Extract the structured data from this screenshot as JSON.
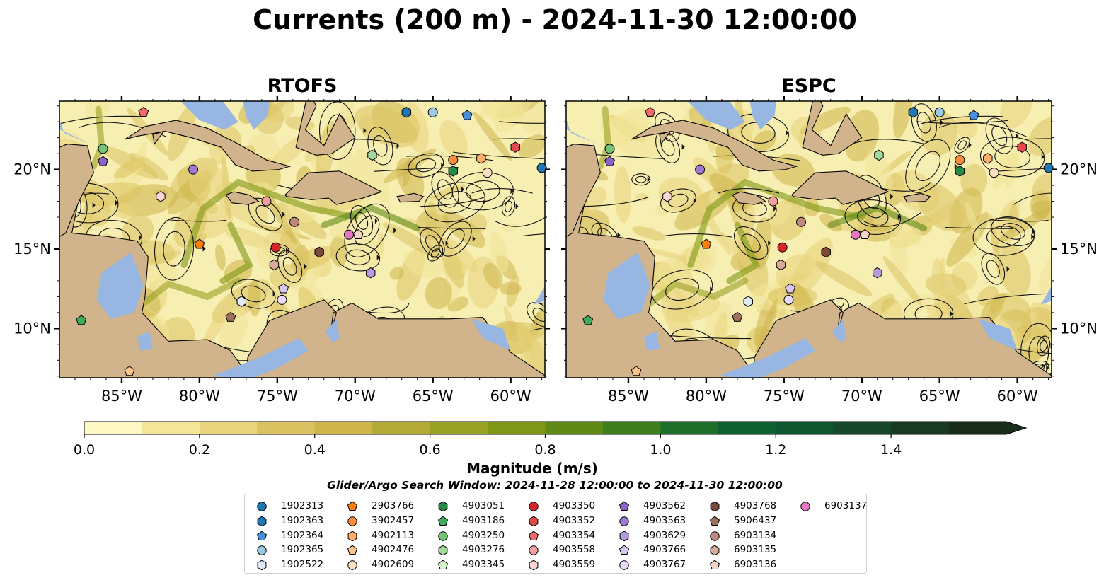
{
  "title": "Currents (200 m) - 2024-11-30 12:00:00",
  "panels": [
    {
      "title": "RTOFS"
    },
    {
      "title": "ESPC"
    }
  ],
  "axes": {
    "lon_ticks": [
      "85°W",
      "80°W",
      "75°W",
      "70°W",
      "65°W",
      "60°W"
    ],
    "lat_ticks": [
      "20°N",
      "15°N",
      "10°N"
    ]
  },
  "colorbar": {
    "label": "Magnitude (m/s)",
    "tick_labels": [
      "0.0",
      "0.2",
      "0.4",
      "0.6",
      "0.8",
      "1.0",
      "1.2",
      "1.4"
    ],
    "colors": [
      "#fef8c4",
      "#f3e699",
      "#e8d47c",
      "#dbc261",
      "#cdb54a",
      "#b2aa35",
      "#9aa224",
      "#7f9716",
      "#5f8a16",
      "#3f7e1e",
      "#1f6e2a",
      "#0e6232",
      "#0f5530",
      "#16472a",
      "#183a24",
      "#1a2d1c"
    ]
  },
  "search_window": "Glider/Argo Search Window: 2024-11-28 12:00:00 to 2024-11-30 12:00:00",
  "legend": [
    {
      "id": "1902313",
      "color": "#1f77b4",
      "shape": "circle"
    },
    {
      "id": "1902363",
      "color": "#1f77b4",
      "shape": "hexagon"
    },
    {
      "id": "1902364",
      "color": "#4a90d9",
      "shape": "pentagon"
    },
    {
      "id": "1902365",
      "color": "#9ecae1",
      "shape": "circle"
    },
    {
      "id": "1902522",
      "color": "#deebf7",
      "shape": "hexagon"
    },
    {
      "id": "2903766",
      "color": "#ff7f0e",
      "shape": "pentagon"
    },
    {
      "id": "3902457",
      "color": "#fd8d3c",
      "shape": "circle"
    },
    {
      "id": "4902113",
      "color": "#fdae6b",
      "shape": "hexagon"
    },
    {
      "id": "4902476",
      "color": "#fdc48c",
      "shape": "pentagon"
    },
    {
      "id": "4902609",
      "color": "#fee0c0",
      "shape": "circle"
    },
    {
      "id": "4903051",
      "color": "#238b45",
      "shape": "hexagon"
    },
    {
      "id": "4903186",
      "color": "#41ab5d",
      "shape": "pentagon"
    },
    {
      "id": "4903250",
      "color": "#74c476",
      "shape": "circle"
    },
    {
      "id": "4903276",
      "color": "#a1d99b",
      "shape": "hexagon"
    },
    {
      "id": "4903345",
      "color": "#d4f5cc",
      "shape": "pentagon"
    },
    {
      "id": "4903350",
      "color": "#d62728",
      "shape": "circle"
    },
    {
      "id": "4903352",
      "color": "#e34a4a",
      "shape": "hexagon"
    },
    {
      "id": "4903354",
      "color": "#ef6a6a",
      "shape": "pentagon"
    },
    {
      "id": "4903558",
      "color": "#f4a0a0",
      "shape": "circle"
    },
    {
      "id": "4903559",
      "color": "#fbd4d4",
      "shape": "hexagon"
    },
    {
      "id": "4903562",
      "color": "#8c63c6",
      "shape": "pentagon"
    },
    {
      "id": "4903563",
      "color": "#9f7ad1",
      "shape": "circle"
    },
    {
      "id": "4903629",
      "color": "#b79ae0",
      "shape": "hexagon"
    },
    {
      "id": "4903766",
      "color": "#d8c6f0",
      "shape": "pentagon"
    },
    {
      "id": "4903767",
      "color": "#ead9fa",
      "shape": "circle"
    },
    {
      "id": "4903768",
      "color": "#7b4a3a",
      "shape": "hexagon"
    },
    {
      "id": "5906437",
      "color": "#a0705e",
      "shape": "pentagon"
    },
    {
      "id": "6903134",
      "color": "#c0887a",
      "shape": "circle"
    },
    {
      "id": "6903135",
      "color": "#d8aa98",
      "shape": "hexagon"
    },
    {
      "id": "6903136",
      "color": "#f2d5c4",
      "shape": "pentagon"
    },
    {
      "id": "6903137",
      "color": "#e377c2",
      "shape": "circle"
    }
  ],
  "floats": [
    {
      "id": "1902313",
      "lon": -58.0,
      "lat": 20.1
    },
    {
      "id": "1902363",
      "lon": -66.7,
      "lat": 23.6
    },
    {
      "id": "1902364",
      "lon": -62.8,
      "lat": 23.4
    },
    {
      "id": "1902365",
      "lon": -65.0,
      "lat": 23.6
    },
    {
      "id": "1902522",
      "lon": -77.3,
      "lat": 11.7
    },
    {
      "id": "2903766",
      "lon": -80.0,
      "lat": 15.3
    },
    {
      "id": "3902457",
      "lon": -63.7,
      "lat": 20.6
    },
    {
      "id": "4902113",
      "lon": -61.9,
      "lat": 20.7
    },
    {
      "id": "4902476",
      "lon": -84.5,
      "lat": 7.3
    },
    {
      "id": "4902609",
      "lon": -61.5,
      "lat": 19.8
    },
    {
      "id": "4903051",
      "lon": -63.7,
      "lat": 19.9
    },
    {
      "id": "4903186",
      "lon": -87.6,
      "lat": 10.5
    },
    {
      "id": "4903250",
      "lon": -86.2,
      "lat": 21.3
    },
    {
      "id": "4903276",
      "lon": -68.9,
      "lat": 20.9
    },
    {
      "id": "4903345",
      "lon": -69.8,
      "lat": 15.9
    },
    {
      "id": "4903350",
      "lon": -75.1,
      "lat": 15.1
    },
    {
      "id": "4903352",
      "lon": -59.7,
      "lat": 21.4
    },
    {
      "id": "4903354",
      "lon": -83.6,
      "lat": 23.6
    },
    {
      "id": "4903558",
      "lon": -75.7,
      "lat": 18.0
    },
    {
      "id": "4903559",
      "lon": -82.5,
      "lat": 18.3
    },
    {
      "id": "4903562",
      "lon": -86.2,
      "lat": 20.5
    },
    {
      "id": "4903563",
      "lon": -80.4,
      "lat": 20.0
    },
    {
      "id": "4903629",
      "lon": -69.0,
      "lat": 13.5
    },
    {
      "id": "4903766",
      "lon": -74.6,
      "lat": 12.5
    },
    {
      "id": "4903767",
      "lon": -74.7,
      "lat": 11.8
    },
    {
      "id": "4903768",
      "lon": -72.3,
      "lat": 14.8
    },
    {
      "id": "5906437",
      "lon": -78.0,
      "lat": 10.7
    },
    {
      "id": "6903134",
      "lon": -73.9,
      "lat": 16.7
    },
    {
      "id": "6903135",
      "lon": -75.2,
      "lat": 14.0
    },
    {
      "id": "6903136",
      "lon": -69.8,
      "lat": 15.9
    },
    {
      "id": "6903137",
      "lon": -70.4,
      "lat": 15.9
    }
  ]
}
